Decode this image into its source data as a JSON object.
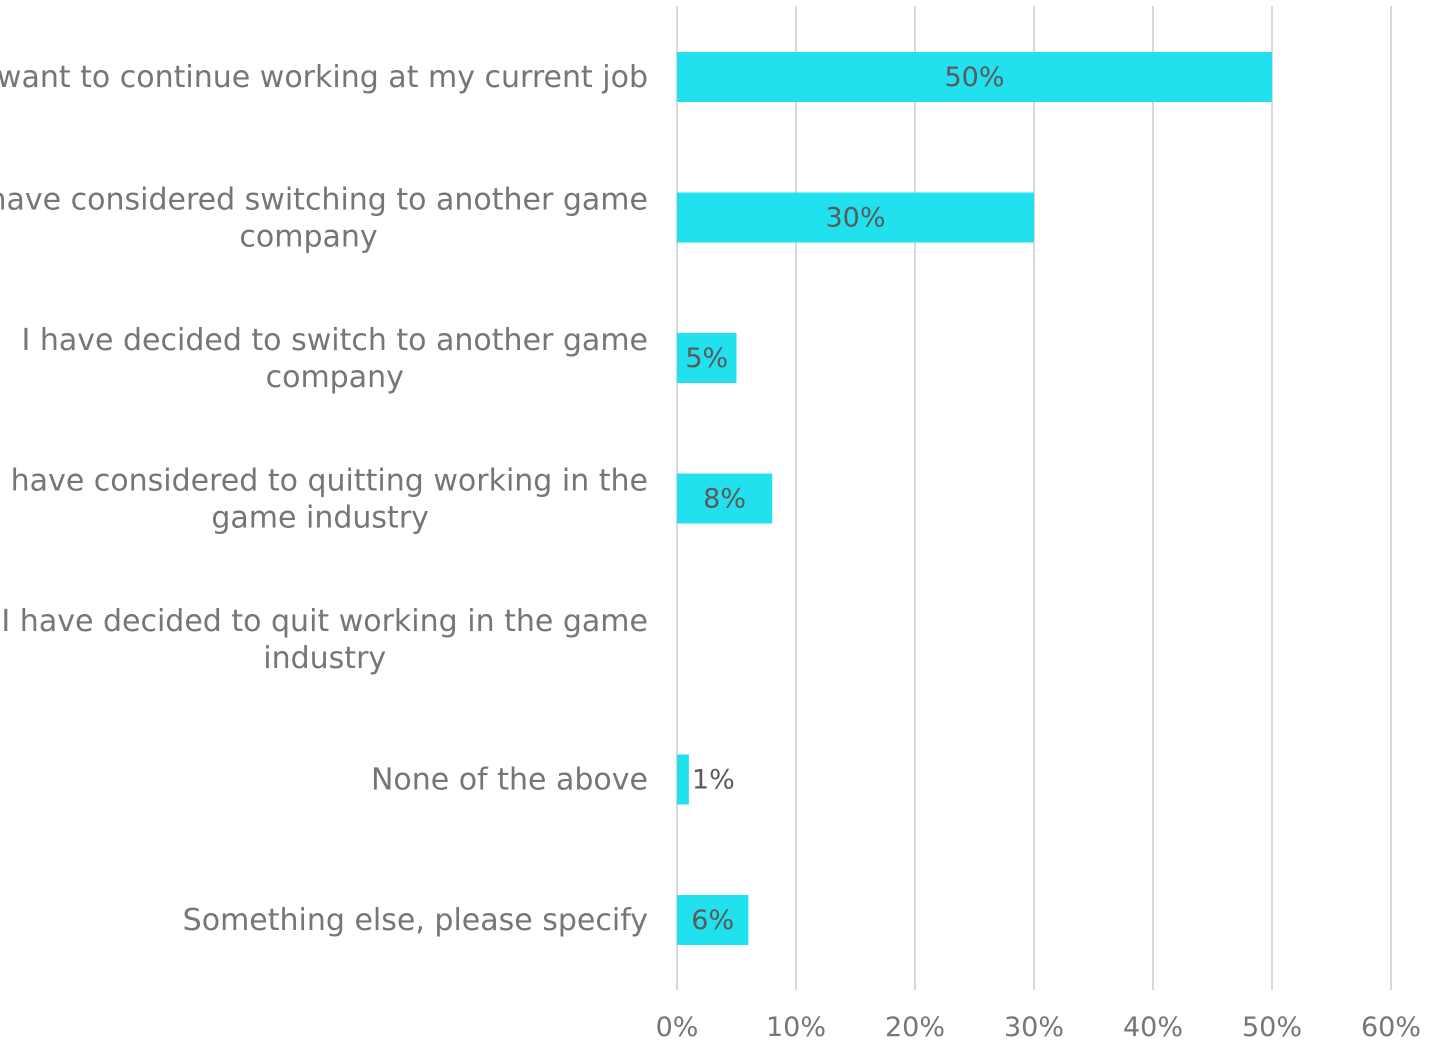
{
  "chart_data": {
    "type": "bar",
    "orientation": "horizontal",
    "categories": [
      [
        "I want to continue working at my current job"
      ],
      [
        "I have considered switching to another game",
        "company"
      ],
      [
        "I have decided to switch to another game",
        "company"
      ],
      [
        "I have considered to quitting working in the",
        "game industry"
      ],
      [
        "I have decided to quit working in the game",
        "industry"
      ],
      [
        "None of the above"
      ],
      [
        "Something else, please specify"
      ]
    ],
    "values": [
      50,
      30,
      5,
      8,
      null,
      1,
      6
    ],
    "data_labels": [
      "50%",
      "30%",
      "5%",
      "8%",
      "",
      "1%",
      "6%"
    ],
    "xlim": [
      0,
      60
    ],
    "x_ticks": [
      0,
      10,
      20,
      30,
      40,
      50,
      60
    ],
    "x_tick_labels": [
      "0%",
      "10%",
      "20%",
      "30%",
      "40%",
      "50%",
      "60%"
    ],
    "xlabel": "",
    "ylabel": "",
    "title": "",
    "grid": "vertical",
    "legend": "none",
    "colors": {
      "bar": "#22e1ee",
      "grid": "#d9d9d9",
      "label_text": "#767676",
      "data_label_text": "#5a5a5a"
    }
  }
}
